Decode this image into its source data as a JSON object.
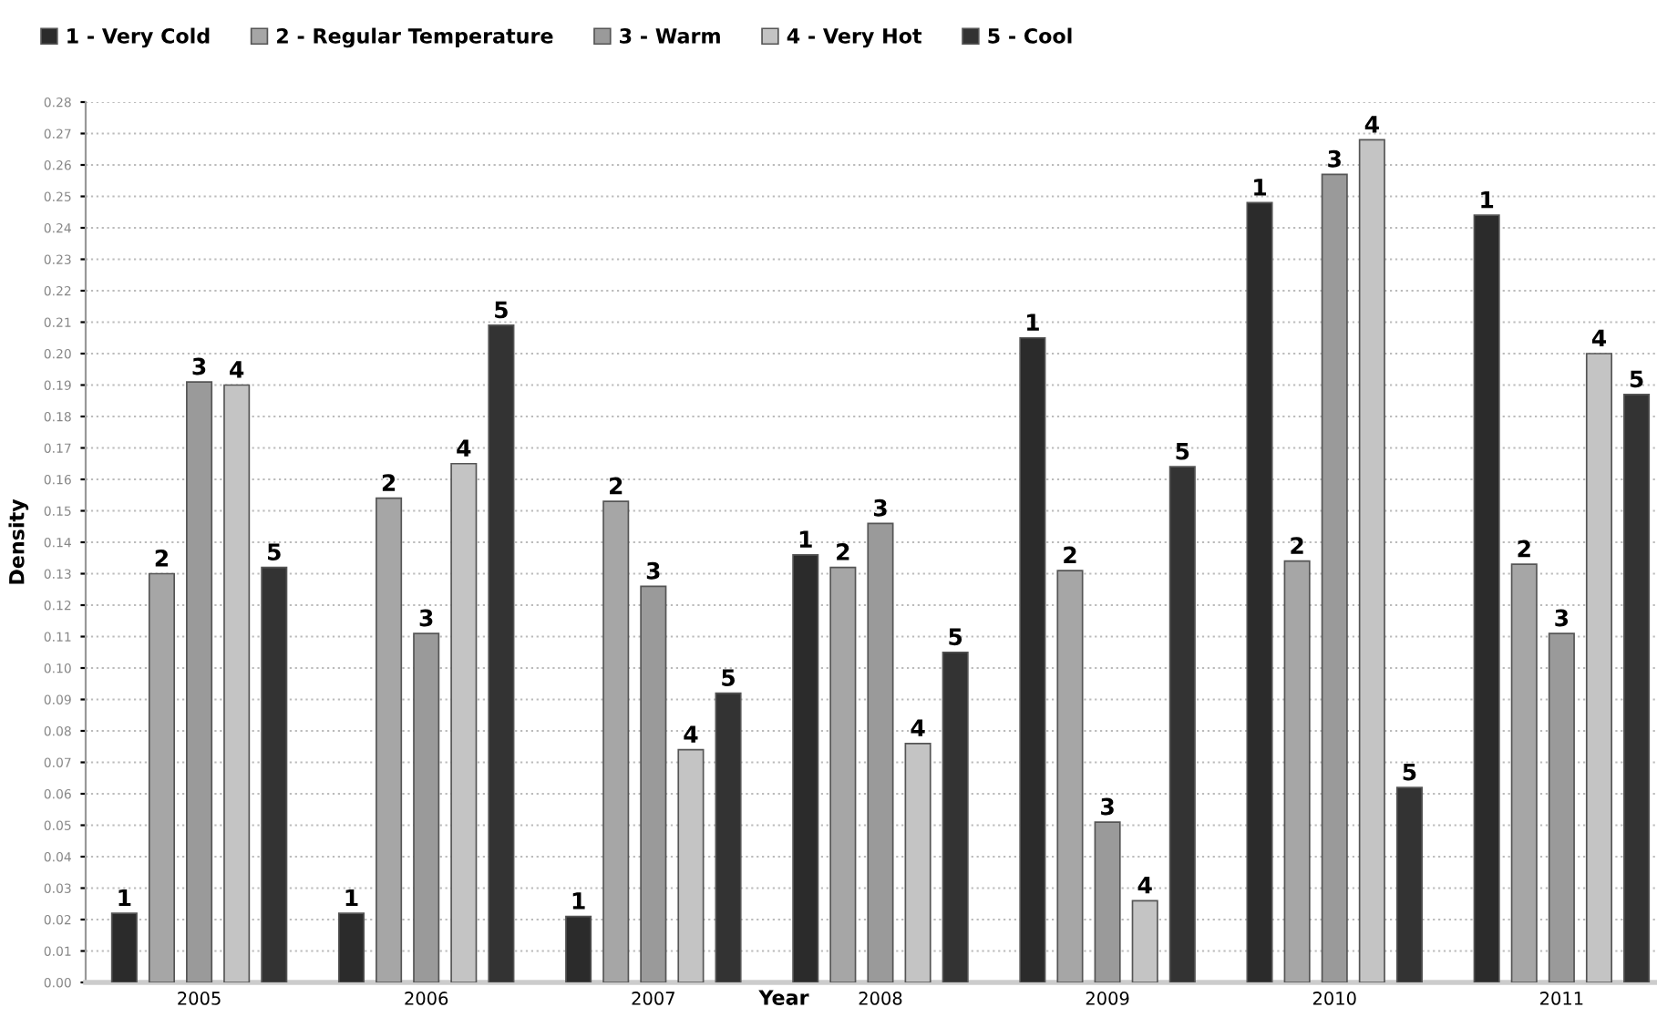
{
  "chart_data": {
    "type": "bar",
    "xlabel": "Year",
    "ylabel": "Density",
    "categories": [
      "2005",
      "2006",
      "2007",
      "2008",
      "2009",
      "2010",
      "2011"
    ],
    "series": [
      {
        "name": "1 - Very Cold",
        "color": "#2b2b2b",
        "values": [
          0.022,
          0.022,
          0.021,
          0.136,
          0.205,
          0.248,
          0.244
        ]
      },
      {
        "name": "2 - Regular Temperature",
        "color": "#a6a6a6",
        "values": [
          0.13,
          0.154,
          0.153,
          0.132,
          0.131,
          0.134,
          0.133
        ]
      },
      {
        "name": "3 - Warm",
        "color": "#9a9a9a",
        "values": [
          0.191,
          0.111,
          0.126,
          0.146,
          0.051,
          0.257,
          0.111
        ]
      },
      {
        "name": "4 - Very Hot",
        "color": "#c4c4c4",
        "values": [
          0.19,
          0.165,
          0.074,
          0.076,
          0.026,
          0.268,
          0.2
        ]
      },
      {
        "name": "5 - Cool",
        "color": "#333333",
        "values": [
          0.132,
          0.209,
          0.092,
          0.105,
          0.164,
          0.062,
          0.187
        ]
      }
    ],
    "annotations": [
      "1",
      "2",
      "3",
      "4",
      "5",
      "1",
      "2",
      "3",
      "4",
      "5",
      "1",
      "2",
      "3",
      "4",
      "5",
      "1",
      "2",
      "3",
      "4",
      "5",
      "1",
      "2",
      "3",
      "4",
      "5",
      "1",
      "2",
      "3",
      "4",
      "5",
      "1",
      "2",
      "3",
      "4",
      "5"
    ],
    "ylim": [
      0,
      0.28
    ],
    "yticks": [
      {
        "value": 0,
        "label": "0.00"
      },
      0.01,
      0.02,
      0.03,
      0.04,
      0.05,
      0.06,
      0.07,
      0.08,
      0.09,
      {
        "value": 0.1,
        "label": "0.10"
      },
      0.11,
      0.12,
      0.13,
      0.14,
      0.15,
      0.16,
      0.17,
      0.18,
      0.19,
      {
        "value": 0.2,
        "label": "0.20"
      },
      0.21,
      0.22,
      0.23,
      0.24,
      0.25,
      0.26,
      0.27,
      0.28
    ],
    "grid": "y",
    "legend": "top left"
  }
}
